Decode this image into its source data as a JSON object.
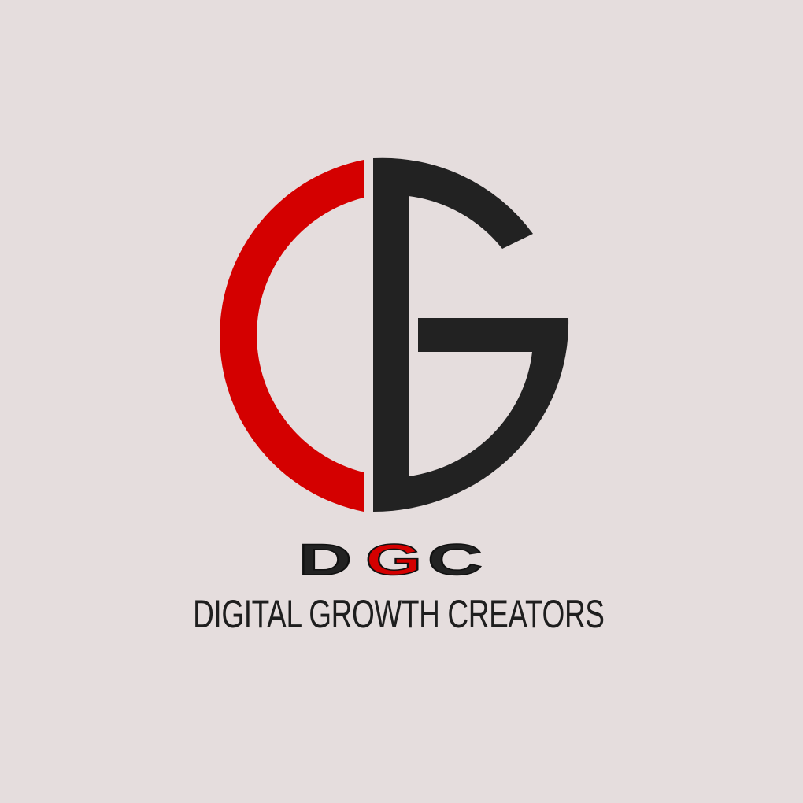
{
  "brand": {
    "monogram": "CG",
    "acronym_letters": [
      "D",
      "G",
      "C"
    ],
    "name": "DIGITAL GROWTH CREATORS",
    "colors": {
      "background": "#e5dddd",
      "red": "#d40000",
      "dark": "#222222",
      "text": "#1e1e1e"
    }
  }
}
